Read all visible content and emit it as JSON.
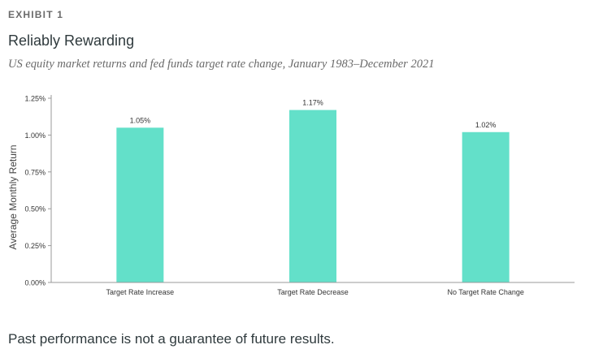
{
  "header": {
    "exhibit": "EXHIBIT 1",
    "title": "Reliably Rewarding",
    "subtitle": "US equity market returns and fed funds target rate change, January 1983–December 2021"
  },
  "footnote": "Past performance is not a guarantee of future results.",
  "colors": {
    "bar": "#63e0c9",
    "axis": "#9a9a9a",
    "text": "#333333"
  },
  "chart_data": {
    "type": "bar",
    "categories": [
      "Target Rate Increase",
      "Target Rate Decrease",
      "No Target Rate Change"
    ],
    "values": [
      1.05,
      1.17,
      1.02
    ],
    "data_labels": [
      "1.05%",
      "1.17%",
      "1.02%"
    ],
    "title": "Reliably Rewarding",
    "ylabel": "Average Monthly Return",
    "xlabel": "",
    "ylim": [
      0,
      1.25
    ],
    "yticks": [
      0,
      0.25,
      0.5,
      0.75,
      1.0,
      1.25
    ],
    "ytick_labels": [
      "0.00%",
      "0.25%",
      "0.50%",
      "0.75%",
      "1.00%",
      "1.25%"
    ],
    "grid": false,
    "legend": "none"
  }
}
